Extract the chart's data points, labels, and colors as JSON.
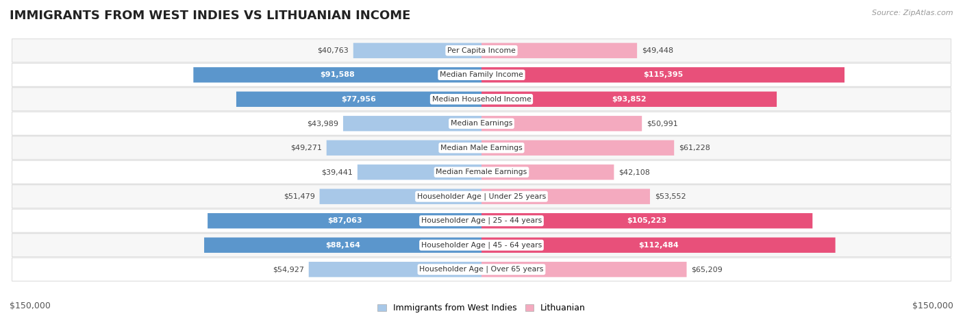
{
  "title": "IMMIGRANTS FROM WEST INDIES VS LITHUANIAN INCOME",
  "source": "Source: ZipAtlas.com",
  "categories": [
    "Per Capita Income",
    "Median Family Income",
    "Median Household Income",
    "Median Earnings",
    "Median Male Earnings",
    "Median Female Earnings",
    "Householder Age | Under 25 years",
    "Householder Age | 25 - 44 years",
    "Householder Age | 45 - 64 years",
    "Householder Age | Over 65 years"
  ],
  "west_indies_values": [
    40763,
    91588,
    77956,
    43989,
    49271,
    39441,
    51479,
    87063,
    88164,
    54927
  ],
  "lithuanian_values": [
    49448,
    115395,
    93852,
    50991,
    61228,
    42108,
    53552,
    105223,
    112484,
    65209
  ],
  "west_indies_color_light": "#A8C8E8",
  "west_indies_color_dark": "#5B96CC",
  "lithuanian_color_light": "#F4AABF",
  "lithuanian_color_dark": "#E8507A",
  "max_value": 150000,
  "background_color": "#ffffff",
  "row_bg_even": "#f7f7f7",
  "row_bg_odd": "#ffffff",
  "row_border_color": "#dddddd",
  "title_fontsize": 13,
  "bar_fontsize": 8,
  "cat_fontsize": 7.8,
  "legend_label_west": "Immigrants from West Indies",
  "legend_label_lith": "Lithuanian",
  "x_label_left": "$150,000",
  "x_label_right": "$150,000",
  "wi_inside_threshold": 70000,
  "lith_inside_threshold": 70000
}
